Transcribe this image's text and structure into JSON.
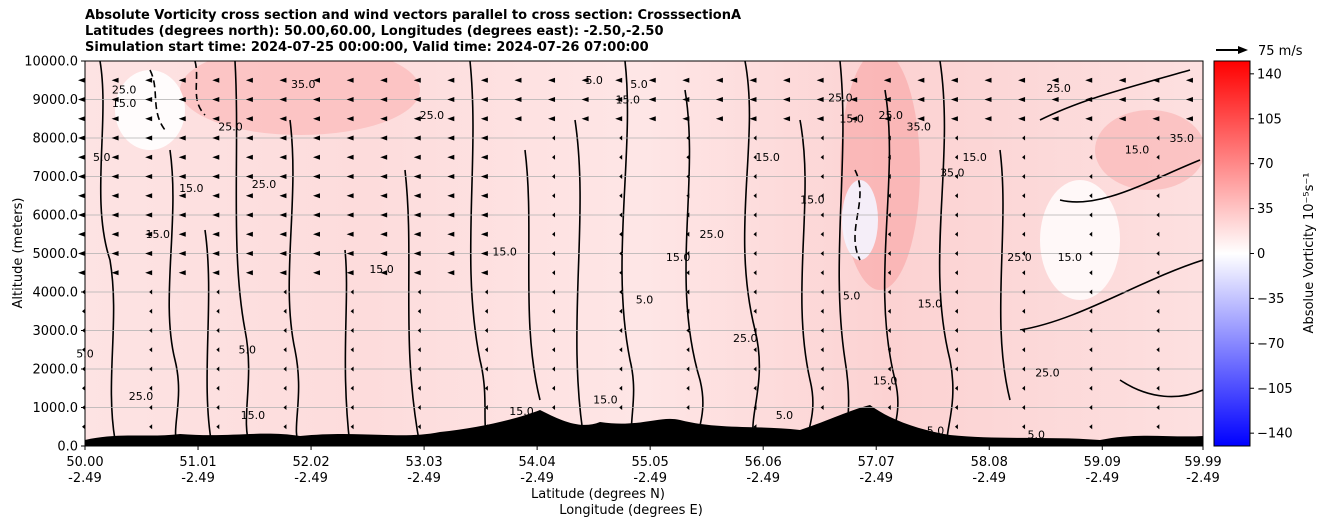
{
  "chart_data": {
    "type": "heatmap",
    "title_lines": [
      "Absolute Vorticity cross section and wind vectors parallel to cross section: CrosssectionA",
      "Latitudes (degrees north): 50.00,60.00, Longitudes (degrees east): -2.50,-2.50",
      "Simulation start time: 2024-07-25 00:00:00, Valid time: 2024-07-26 07:00:00"
    ],
    "xlabel_lines": [
      "Latitude (degrees N)",
      "Longitude (degrees E)"
    ],
    "ylabel": "Altitude (meters)",
    "x_tick_labels": [
      [
        "50.00",
        "-2.49"
      ],
      [
        "51.01",
        "-2.49"
      ],
      [
        "52.02",
        "-2.49"
      ],
      [
        "53.03",
        "-2.49"
      ],
      [
        "54.04",
        "-2.49"
      ],
      [
        "55.05",
        "-2.49"
      ],
      [
        "56.06",
        "-2.49"
      ],
      [
        "57.07",
        "-2.49"
      ],
      [
        "58.08",
        "-2.49"
      ],
      [
        "59.09",
        "-2.49"
      ],
      [
        "59.99",
        "-2.49"
      ]
    ],
    "x_ticks": [
      50.0,
      51.01,
      52.02,
      53.03,
      54.04,
      55.05,
      56.06,
      57.07,
      58.08,
      59.09,
      59.99
    ],
    "xlim": [
      50.0,
      59.99
    ],
    "y_ticks": [
      0,
      1000,
      2000,
      3000,
      4000,
      5000,
      6000,
      7000,
      8000,
      9000,
      10000
    ],
    "y_tick_labels": [
      "0.0",
      "1000.0",
      "2000.0",
      "3000.0",
      "4000.0",
      "5000.0",
      "6000.0",
      "7000.0",
      "8000.0",
      "9000.0",
      "10000.0"
    ],
    "ylim": [
      0,
      10000
    ],
    "grid": "horizontal",
    "colorbar": {
      "label": "Absolue Vorticity 10$^{-5}$s$^{-1}$",
      "label_display": "Absolue Vorticity 10⁻⁵s⁻¹",
      "ticks": [
        140,
        105,
        70,
        35,
        0,
        -35,
        -70,
        -105,
        -140
      ],
      "tick_labels": [
        "140",
        "105",
        "70",
        "35",
        "0",
        "−35",
        "−70",
        "−105",
        "−140"
      ],
      "range": [
        -150,
        150
      ],
      "colormap": "bwr",
      "colors": {
        "high": "#ff0000",
        "mid": "#ffffff",
        "low": "#0000ff"
      }
    },
    "quiver_key": {
      "label": "75 m/s",
      "speed": 75
    },
    "wind_direction": "toward lower latitude (leftward) aloft",
    "contour_levels": [
      5.0,
      15.0,
      25.0,
      35.0
    ],
    "contour_labels": [
      {
        "x": 50.35,
        "y": 9150,
        "text": "25.0"
      },
      {
        "x": 50.15,
        "y": 7400,
        "text": "5.0"
      },
      {
        "x": 50.35,
        "y": 8800,
        "text": "15.0"
      },
      {
        "x": 50.95,
        "y": 6600,
        "text": "15.0"
      },
      {
        "x": 50.65,
        "y": 5400,
        "text": "15.0"
      },
      {
        "x": 51.95,
        "y": 9300,
        "text": "35.0"
      },
      {
        "x": 51.3,
        "y": 8200,
        "text": "25.0"
      },
      {
        "x": 51.6,
        "y": 6700,
        "text": "25.0"
      },
      {
        "x": 53.1,
        "y": 8500,
        "text": "25.0"
      },
      {
        "x": 53.75,
        "y": 4950,
        "text": "15.0"
      },
      {
        "x": 54.55,
        "y": 9400,
        "text": "5.0"
      },
      {
        "x": 54.95,
        "y": 9300,
        "text": "5.0"
      },
      {
        "x": 54.85,
        "y": 8900,
        "text": "15.0"
      },
      {
        "x": 55.6,
        "y": 5400,
        "text": "25.0"
      },
      {
        "x": 55.3,
        "y": 4800,
        "text": "15.0"
      },
      {
        "x": 56.1,
        "y": 7400,
        "text": "15.0"
      },
      {
        "x": 56.5,
        "y": 6300,
        "text": "15.0"
      },
      {
        "x": 56.75,
        "y": 8950,
        "text": "25.0"
      },
      {
        "x": 56.85,
        "y": 8400,
        "text": "15.0"
      },
      {
        "x": 57.2,
        "y": 8500,
        "text": "25.0"
      },
      {
        "x": 57.45,
        "y": 8200,
        "text": "35.0"
      },
      {
        "x": 57.75,
        "y": 7000,
        "text": "35.0"
      },
      {
        "x": 57.95,
        "y": 7400,
        "text": "15.0"
      },
      {
        "x": 58.7,
        "y": 9200,
        "text": "25.0"
      },
      {
        "x": 58.35,
        "y": 4800,
        "text": "25.0"
      },
      {
        "x": 58.8,
        "y": 4800,
        "text": "15.0"
      },
      {
        "x": 59.4,
        "y": 7600,
        "text": "15.0"
      },
      {
        "x": 59.8,
        "y": 7900,
        "text": "35.0"
      },
      {
        "x": 56.85,
        "y": 3800,
        "text": "5.0"
      },
      {
        "x": 57.15,
        "y": 1600,
        "text": "15.0"
      },
      {
        "x": 58.6,
        "y": 1800,
        "text": "25.0"
      },
      {
        "x": 52.65,
        "y": 4500,
        "text": "15.0"
      },
      {
        "x": 51.5,
        "y": 700,
        "text": "15.0"
      },
      {
        "x": 54.65,
        "y": 1100,
        "text": "15.0"
      },
      {
        "x": 53.9,
        "y": 800,
        "text": "15.0"
      },
      {
        "x": 56.25,
        "y": 700,
        "text": "5.0"
      },
      {
        "x": 50.5,
        "y": 1200,
        "text": "25.0"
      },
      {
        "x": 57.6,
        "y": 300,
        "text": "5.0"
      },
      {
        "x": 58.5,
        "y": 200,
        "text": "5.0"
      },
      {
        "x": 51.45,
        "y": 2400,
        "text": "5.0"
      },
      {
        "x": 50.0,
        "y": 2300,
        "text": "5.0"
      },
      {
        "x": 55.9,
        "y": 2700,
        "text": "25.0"
      },
      {
        "x": 55.0,
        "y": 3700,
        "text": "5.0"
      },
      {
        "x": 57.55,
        "y": 3600,
        "text": "15.0"
      }
    ]
  }
}
